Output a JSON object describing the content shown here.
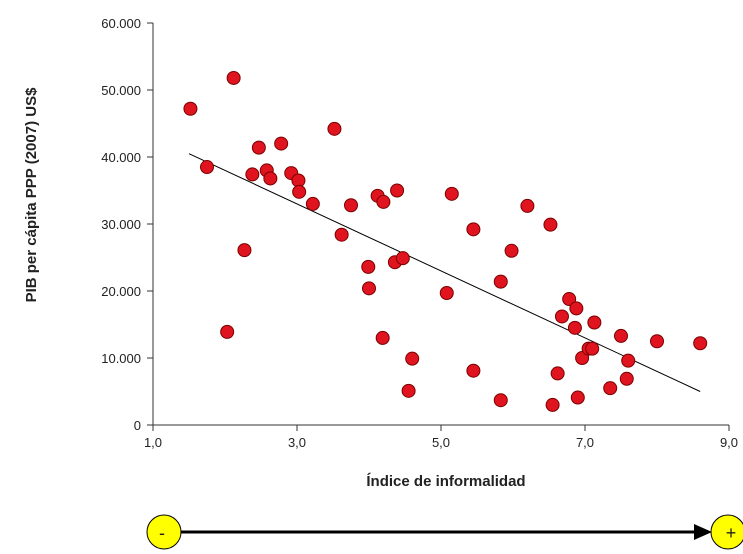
{
  "chart_data": {
    "type": "scatter",
    "title": "",
    "xlabel": "Índice de informalidad",
    "ylabel": "PIB per cápita PPP (2007) US$",
    "xlim": [
      1,
      9
    ],
    "ylim": [
      0,
      60000
    ],
    "x_ticks": [
      1,
      3,
      5,
      7,
      9
    ],
    "x_tick_labels": [
      "1,0",
      "3,0",
      "5,0",
      "7,0",
      "9,0"
    ],
    "y_ticks": [
      0,
      10000,
      20000,
      30000,
      40000,
      50000,
      60000
    ],
    "y_tick_labels": [
      "0",
      "10.000",
      "20.000",
      "30.000",
      "40.000",
      "50.000",
      "60.000"
    ],
    "grid": false,
    "legend": "none",
    "point_color": "#e0141e",
    "trendline": {
      "x": [
        1.5,
        8.6
      ],
      "y": [
        40500,
        5000
      ]
    },
    "points": [
      {
        "x": 1.52,
        "y": 47200
      },
      {
        "x": 1.75,
        "y": 38500
      },
      {
        "x": 2.03,
        "y": 13900
      },
      {
        "x": 2.12,
        "y": 51800
      },
      {
        "x": 2.27,
        "y": 26100
      },
      {
        "x": 2.38,
        "y": 37400
      },
      {
        "x": 2.47,
        "y": 41400
      },
      {
        "x": 2.58,
        "y": 38000
      },
      {
        "x": 2.63,
        "y": 36800
      },
      {
        "x": 2.78,
        "y": 42000
      },
      {
        "x": 2.92,
        "y": 37600
      },
      {
        "x": 3.02,
        "y": 36500
      },
      {
        "x": 3.03,
        "y": 34800
      },
      {
        "x": 3.22,
        "y": 33000
      },
      {
        "x": 3.52,
        "y": 44200
      },
      {
        "x": 3.62,
        "y": 28400
      },
      {
        "x": 3.75,
        "y": 32800
      },
      {
        "x": 3.99,
        "y": 23600
      },
      {
        "x": 4.0,
        "y": 20400
      },
      {
        "x": 4.12,
        "y": 34200
      },
      {
        "x": 4.2,
        "y": 33300
      },
      {
        "x": 4.19,
        "y": 13000
      },
      {
        "x": 4.36,
        "y": 24300
      },
      {
        "x": 4.39,
        "y": 35000
      },
      {
        "x": 4.47,
        "y": 24900
      },
      {
        "x": 4.55,
        "y": 5100
      },
      {
        "x": 4.6,
        "y": 9900
      },
      {
        "x": 5.08,
        "y": 19700
      },
      {
        "x": 5.15,
        "y": 34500
      },
      {
        "x": 5.45,
        "y": 29200
      },
      {
        "x": 5.45,
        "y": 8100
      },
      {
        "x": 5.83,
        "y": 21400
      },
      {
        "x": 5.83,
        "y": 3700
      },
      {
        "x": 5.98,
        "y": 26000
      },
      {
        "x": 6.2,
        "y": 32700
      },
      {
        "x": 6.52,
        "y": 29900
      },
      {
        "x": 6.55,
        "y": 3000
      },
      {
        "x": 6.62,
        "y": 7700
      },
      {
        "x": 6.68,
        "y": 16200
      },
      {
        "x": 6.78,
        "y": 18800
      },
      {
        "x": 6.86,
        "y": 14500
      },
      {
        "x": 6.88,
        "y": 17400
      },
      {
        "x": 6.9,
        "y": 4100
      },
      {
        "x": 6.96,
        "y": 10000
      },
      {
        "x": 7.05,
        "y": 11400
      },
      {
        "x": 7.1,
        "y": 11400
      },
      {
        "x": 7.13,
        "y": 15300
      },
      {
        "x": 7.35,
        "y": 5500
      },
      {
        "x": 7.5,
        "y": 13300
      },
      {
        "x": 7.58,
        "y": 6900
      },
      {
        "x": 7.6,
        "y": 9600
      },
      {
        "x": 8.0,
        "y": 12500
      },
      {
        "x": 8.6,
        "y": 12200
      }
    ]
  },
  "scale_arrow": {
    "start_label": "-",
    "end_label": "+",
    "marker_color": "#ffff00"
  }
}
